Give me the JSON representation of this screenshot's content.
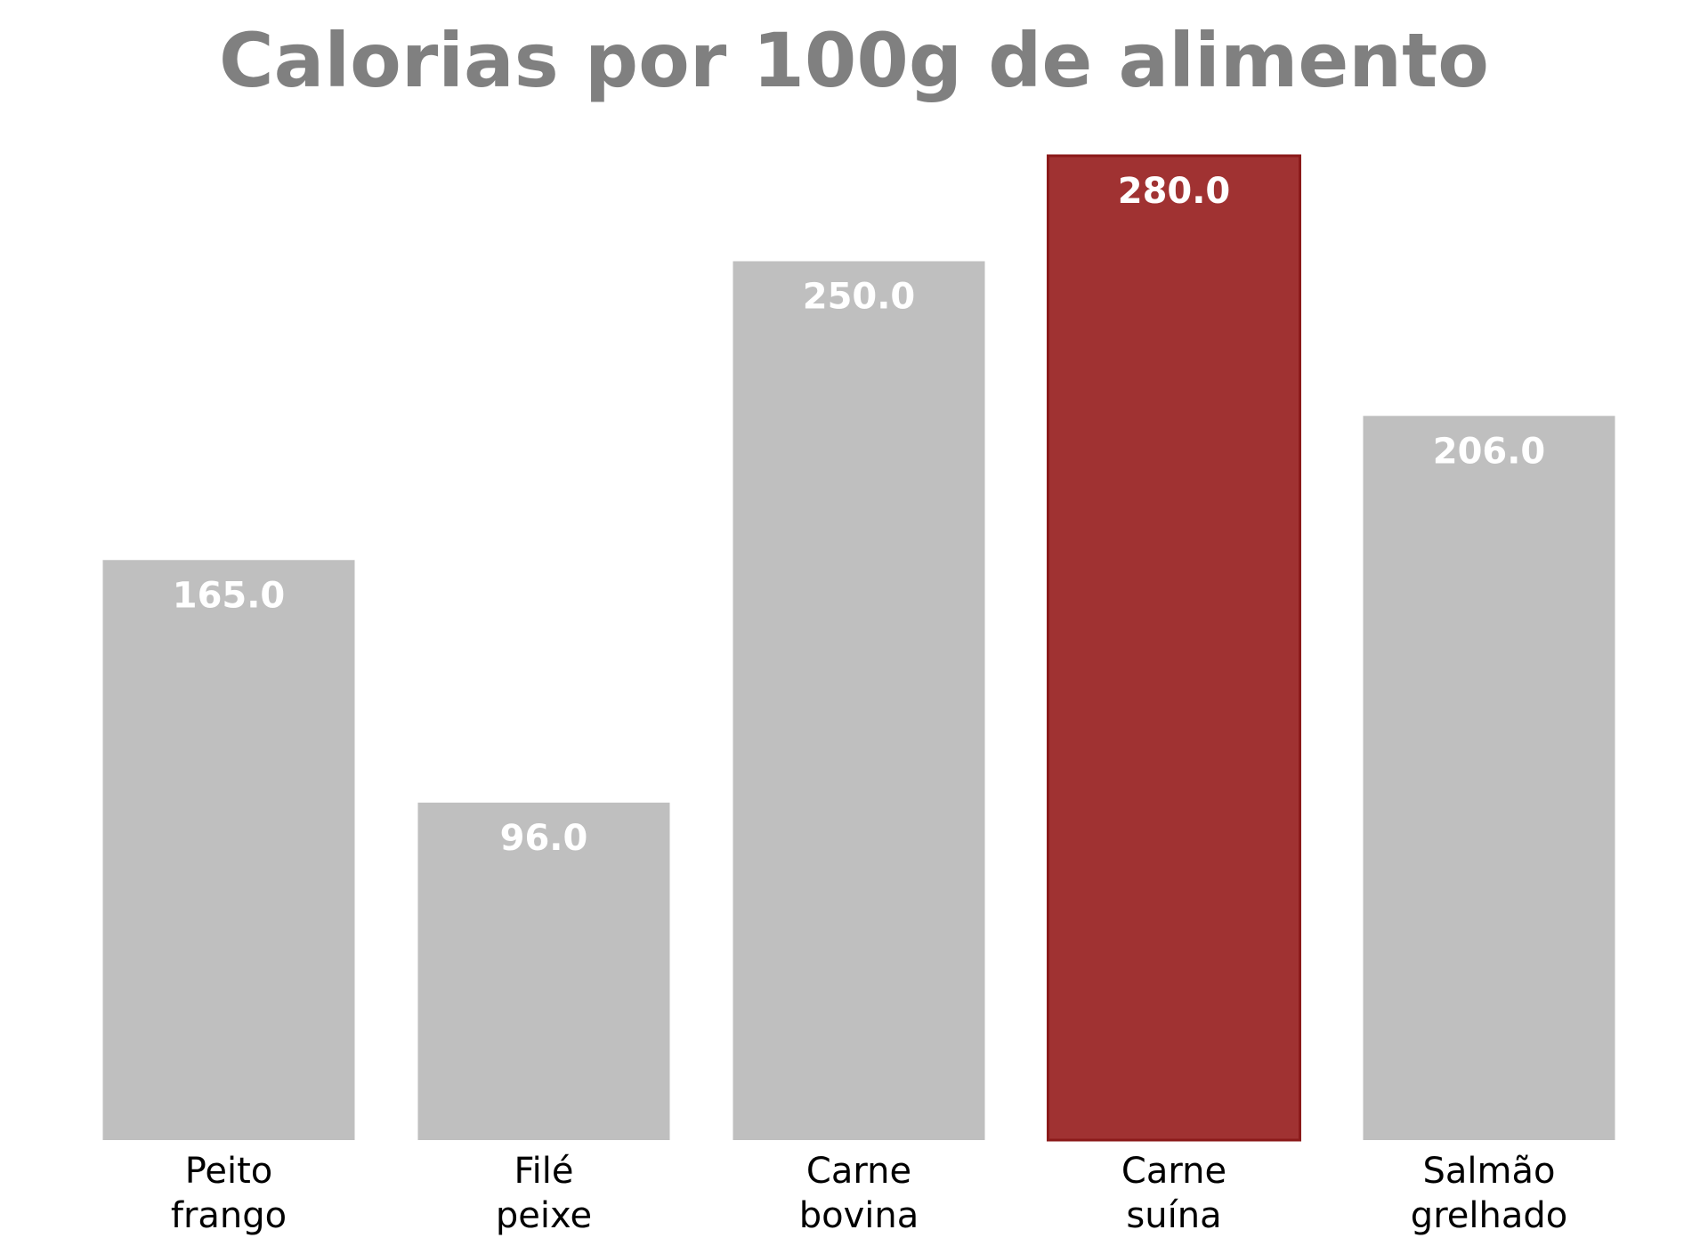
{
  "chart_data": {
    "type": "bar",
    "title": "Calorias por 100g de alimento",
    "xlabel": "",
    "ylabel": "",
    "categories": [
      "Peito\nfrango",
      "Filé\npeixe",
      "Carne\nbovina",
      "Carne\nsuína",
      "Salmão\ngrelhado"
    ],
    "values": [
      165.0,
      96.0,
      250.0,
      280.0,
      206.0
    ],
    "value_labels": [
      "165.0",
      "96.0",
      "250.0",
      "280.0",
      "206.0"
    ],
    "ylim": [
      0,
      280
    ],
    "highlight_index": 3,
    "grid": false,
    "legend": "none",
    "colors": {
      "default_bar": "#bfbfbf",
      "highlight_bar": "#a03232",
      "highlight_edge": "#8b1a1a",
      "title": "#808080",
      "value_label": "#ffffff"
    }
  }
}
